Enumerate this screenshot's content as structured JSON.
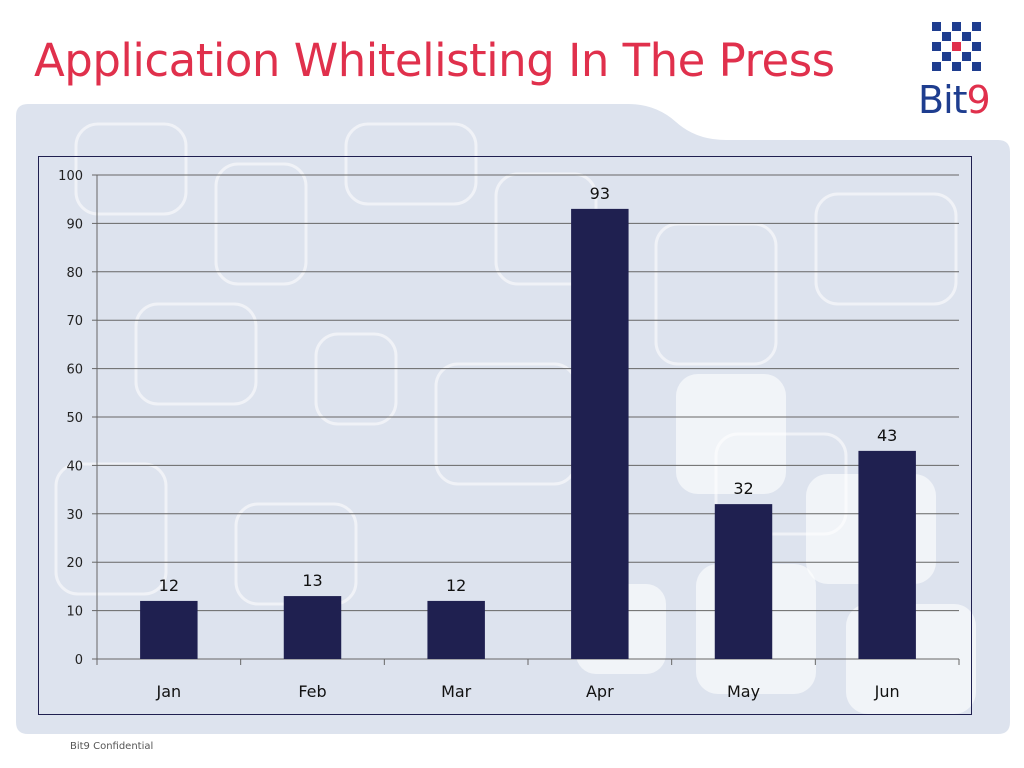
{
  "title": "Application Whitelisting In The Press",
  "logo": {
    "text_main": "Bit",
    "text_accent": "9"
  },
  "footer": "Bit9 Confidential",
  "colors": {
    "title": "#e0304c",
    "bar": "#1f2050",
    "background_panel": "#dde3ee",
    "logo_blue": "#1e3d8f",
    "logo_red": "#e0304c"
  },
  "chart_data": {
    "type": "bar",
    "title": "",
    "xlabel": "",
    "ylabel": "",
    "categories": [
      "Jan",
      "Feb",
      "Mar",
      "Apr",
      "May",
      "Jun"
    ],
    "values": [
      12,
      13,
      12,
      93,
      32,
      43
    ],
    "data_labels": [
      "12",
      "13",
      "12",
      "93",
      "32",
      "43"
    ],
    "ylim": [
      0,
      100
    ],
    "yticks": [
      0,
      10,
      20,
      30,
      40,
      50,
      60,
      70,
      80,
      90,
      100
    ],
    "ytick_labels": [
      "0",
      "10",
      "20",
      "30",
      "40",
      "50",
      "60",
      "70",
      "80",
      "90",
      "100"
    ],
    "grid": true,
    "legend": "none"
  }
}
